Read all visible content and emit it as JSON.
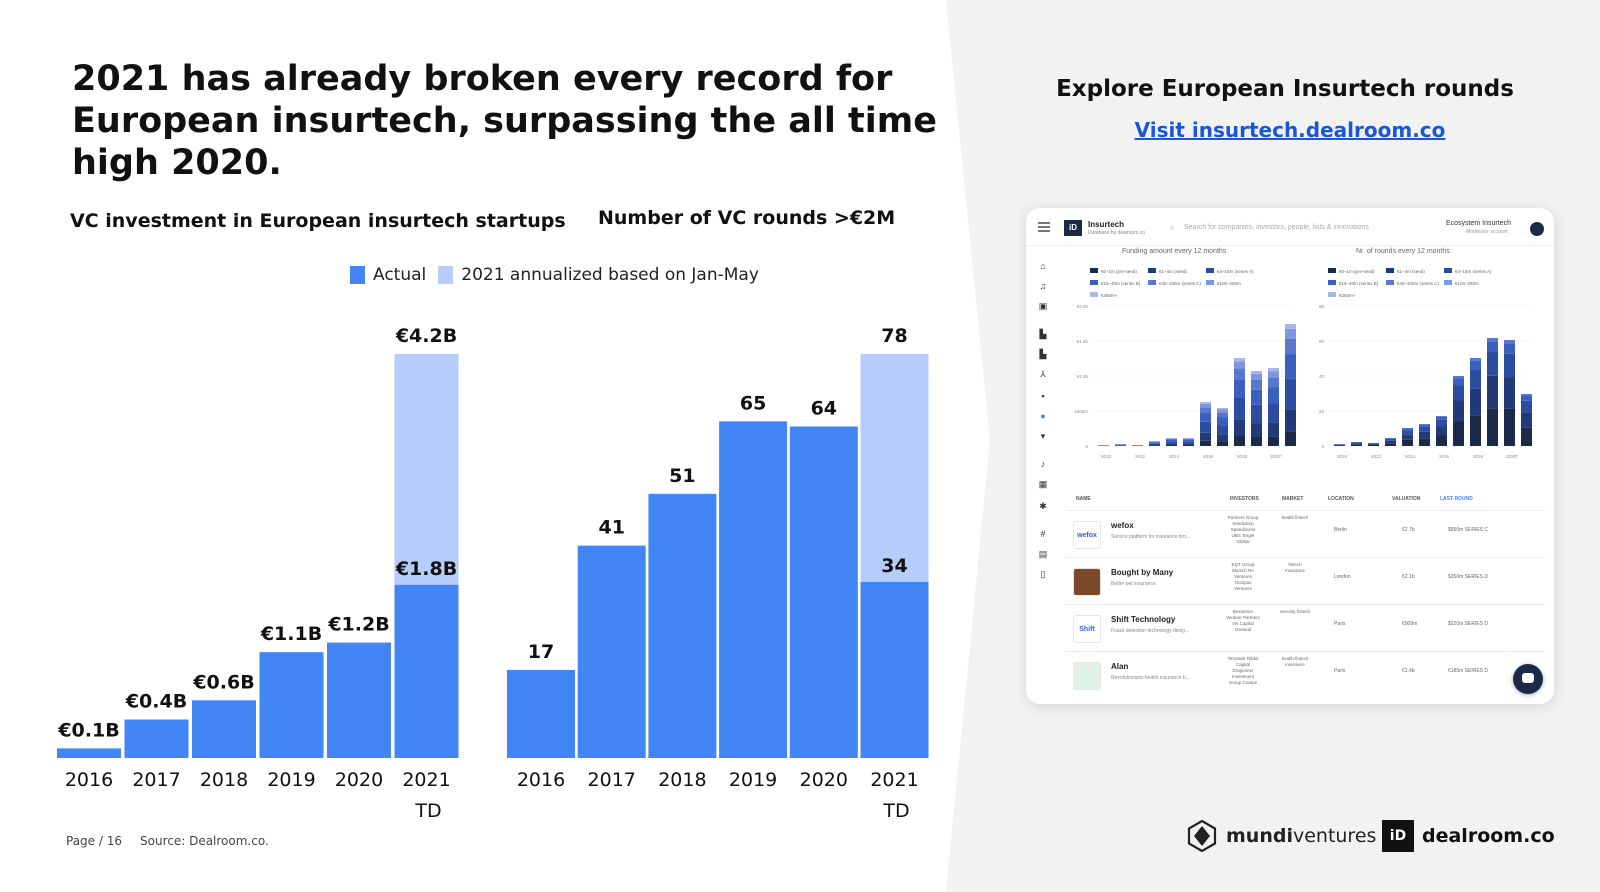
{
  "headline": "2021 has already broken every record for European insurtech, surpassing the all time high 2020.",
  "legend": {
    "actual": "Actual",
    "annualized": "2021 annualized based on Jan-May"
  },
  "colors": {
    "actual": "#4285f4",
    "annualized": "#b6cdfb",
    "panel_bg": "#f2f2f2",
    "link": "#1a56d6",
    "navy": "#1c2a4a"
  },
  "chart_data": [
    {
      "type": "bar",
      "title": "VC investment in European insurtech startups",
      "categories": [
        "2016",
        "2017",
        "2018",
        "2019",
        "2020",
        "2021 TD"
      ],
      "category_lines": [
        [
          "2016"
        ],
        [
          "2017"
        ],
        [
          "2018"
        ],
        [
          "2019"
        ],
        [
          "2020"
        ],
        [
          "2021",
          "TD"
        ]
      ],
      "series": [
        {
          "name": "Actual",
          "values": [
            0.1,
            0.4,
            0.6,
            1.1,
            1.2,
            1.8
          ],
          "labels": [
            "€0.1B",
            "€0.4B",
            "€0.6B",
            "€1.1B",
            "€1.2B",
            "€1.8B"
          ]
        },
        {
          "name": "2021 annualized based on Jan-May",
          "values": [
            null,
            null,
            null,
            null,
            null,
            4.2
          ],
          "labels": [
            "",
            "",
            "",
            "",
            "",
            "€4.2B"
          ]
        }
      ],
      "unit": "€B",
      "ylim": [
        0,
        4.2
      ]
    },
    {
      "type": "bar",
      "title": "Number of VC rounds >€2M",
      "categories": [
        "2016",
        "2017",
        "2018",
        "2019",
        "2020",
        "2021 TD"
      ],
      "category_lines": [
        [
          "2016"
        ],
        [
          "2017"
        ],
        [
          "2018"
        ],
        [
          "2019"
        ],
        [
          "2020"
        ],
        [
          "2021",
          "TD"
        ]
      ],
      "series": [
        {
          "name": "Actual",
          "values": [
            17,
            41,
            51,
            65,
            64,
            34
          ],
          "labels": [
            "17",
            "41",
            "51",
            "65",
            "64",
            "34"
          ]
        },
        {
          "name": "2021 annualized based on Jan-May",
          "values": [
            null,
            null,
            null,
            null,
            null,
            78
          ],
          "labels": [
            "",
            "",
            "",
            "",
            "",
            "78"
          ]
        }
      ],
      "ylim": [
        0,
        78
      ]
    }
  ],
  "footer": {
    "page": "Page / 16",
    "source": "Source: Dealroom.co."
  },
  "right": {
    "explore": "Explore European Insurtech rounds",
    "visit": "Visit insurtech.dealroom.co"
  },
  "app": {
    "logo": "iD",
    "name": "Insurtech",
    "subtitle": "Database by dealroom.co",
    "search_placeholder": "Search for companies, investors, people, lists & innovations",
    "account": "Ecosystem Insurtech",
    "account_sub": "Moderator account",
    "funding_title": "Funding amount every 12 months",
    "rounds_title": "Nr. of rounds every 12 months",
    "funding_legend": [
      "€0–1m (pre-seed)",
      "€1–4m (seed)",
      "€4–15m (series A)",
      "€15–40m (series B)",
      "€40–100m (series C)",
      "€100–250m",
      "€250m+"
    ],
    "rounds_legend": [
      "€0–1m (pre-seed)",
      "€1–4m (seed)",
      "€4–15m (series A)",
      "€15–40m (series B)",
      "€40–100m (series C)",
      "€100–250m",
      "€250m+"
    ],
    "funding_yticks": [
      "€2.0b",
      "€1.5b",
      "€1.0b",
      "€500m",
      "0"
    ],
    "rounds_yticks": [
      "80",
      "60",
      "40",
      "20",
      "0"
    ],
    "xticks": [
      "2010",
      "2012",
      "2014",
      "2016",
      "2018",
      "2020*"
    ],
    "columns": [
      "NAME",
      "INVESTORS",
      "MARKET",
      "LOCATION",
      "VALUATION",
      "LAST ROUND"
    ],
    "rows": [
      {
        "logo": "wefox",
        "name": "wefox",
        "desc": "Service platform for insurance bro...",
        "investors": "Partners Group Seedcamp Speedinvest UBS Target Global",
        "market": "health fintech",
        "location": "Berlin",
        "valuation": "€2.7b",
        "last_round": "$650m SERIES C"
      },
      {
        "logo": "",
        "name": "Bought by Many",
        "desc": "Better pet insurance",
        "investors": "EQT Group Munich Re Ventures Octopus Ventures",
        "market": "fintech insurance",
        "location": "London",
        "valuation": "€2.1b",
        "last_round": "$350m SERIES D"
      },
      {
        "logo": "Shift",
        "name": "Shift Technology",
        "desc": "Fraud-detection technology desig...",
        "investors": "Bessemer Venture Partners Iris Capital General",
        "market": "security fintech",
        "location": "Paris",
        "valuation": "€909m",
        "last_round": "$220m SERIES D"
      },
      {
        "logo": "",
        "name": "Alan",
        "desc": "Revolutionizes health insurance b...",
        "investors": "Temasek Ribbit Capital Dragoneer Investment Group Coatue",
        "market": "health fintech insurance",
        "location": "Paris",
        "valuation": "€1.4b",
        "last_round": "€185m SERIES D"
      }
    ]
  },
  "brands": {
    "mundi_a": "mundi",
    "mundi_b": "ventures",
    "dealroom_mark": "iD",
    "dealroom": "dealroom.co"
  }
}
